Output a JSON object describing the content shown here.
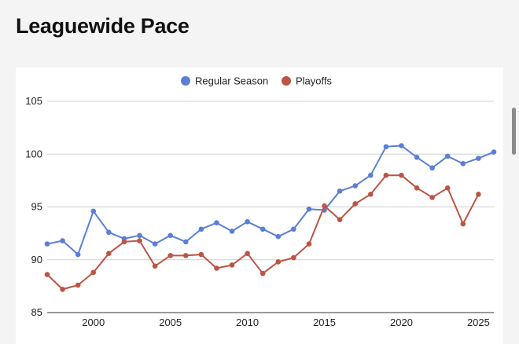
{
  "page": {
    "title": "Leaguewide Pace"
  },
  "colors": {
    "regular": "#5b7fd6",
    "playoffs": "#bb5545",
    "grid": "#d0d0d0",
    "axis": "#333333"
  },
  "chart_data": {
    "type": "line",
    "title": "",
    "xlabel": "",
    "ylabel": "",
    "xlim": [
      1997,
      2026
    ],
    "ylim": [
      85,
      105
    ],
    "yticks": [
      85,
      90,
      95,
      100,
      105
    ],
    "xticks": [
      2000,
      2005,
      2010,
      2015,
      2020,
      2025
    ],
    "legend_position": "top-center",
    "grid": true,
    "series": [
      {
        "name": "Regular Season",
        "color": "#5b7fd6",
        "x": [
          1997,
          1998,
          1999,
          2000,
          2001,
          2002,
          2003,
          2004,
          2005,
          2006,
          2007,
          2008,
          2009,
          2010,
          2011,
          2012,
          2013,
          2014,
          2015,
          2016,
          2017,
          2018,
          2019,
          2020,
          2021,
          2022,
          2023,
          2024,
          2025,
          2026
        ],
        "values": [
          91.5,
          91.8,
          90.5,
          94.6,
          92.6,
          92.0,
          92.3,
          91.5,
          92.3,
          91.7,
          92.9,
          93.5,
          92.7,
          93.6,
          92.9,
          92.2,
          92.9,
          94.8,
          94.7,
          96.5,
          97.0,
          98.0,
          100.7,
          100.8,
          99.7,
          98.7,
          99.8,
          99.1,
          99.6,
          100.2
        ]
      },
      {
        "name": "Playoffs",
        "color": "#bb5545",
        "x": [
          1997,
          1998,
          1999,
          2000,
          2001,
          2002,
          2003,
          2004,
          2005,
          2006,
          2007,
          2008,
          2009,
          2010,
          2011,
          2012,
          2013,
          2014,
          2015,
          2016,
          2017,
          2018,
          2019,
          2020,
          2021,
          2022,
          2023,
          2024,
          2025
        ],
        "values": [
          88.6,
          87.2,
          87.6,
          88.8,
          90.6,
          91.7,
          91.8,
          89.4,
          90.4,
          90.4,
          90.5,
          89.2,
          89.5,
          90.6,
          88.7,
          89.8,
          90.2,
          91.5,
          95.1,
          93.8,
          95.3,
          96.2,
          98.0,
          98.0,
          96.8,
          95.9,
          96.8,
          93.4,
          96.2
        ]
      }
    ]
  }
}
